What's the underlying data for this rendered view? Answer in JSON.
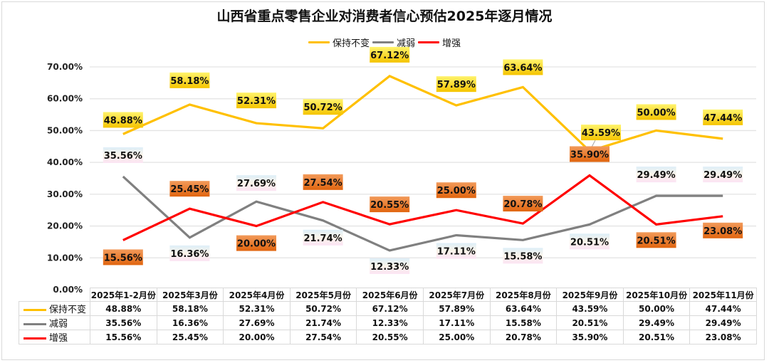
{
  "chart_data": {
    "type": "line",
    "title": "山西省重点零售企业对消费者信心预估2025年逐月情况",
    "xlabel": "",
    "ylabel": "",
    "ylim": [
      0,
      70
    ],
    "yticks": [
      "0.00%",
      "10.00%",
      "20.00%",
      "30.00%",
      "40.00%",
      "50.00%",
      "60.00%",
      "70.00%"
    ],
    "ytick_values": [
      0,
      10,
      20,
      30,
      40,
      50,
      60,
      70
    ],
    "grid": true,
    "legend_position": "top-center",
    "categories": [
      "2025年1-2月份",
      "2025年3月份",
      "2025年4月份",
      "2025年5月份",
      "2025年6月份",
      "2025年7月份",
      "2025年8月份",
      "2025年9月份",
      "2025年10月份",
      "2025年11月份"
    ],
    "series": [
      {
        "name": "保持不变",
        "color": "#FFC000",
        "label_style": "yellow",
        "values": [
          48.88,
          58.18,
          52.31,
          50.72,
          67.12,
          57.89,
          63.64,
          43.59,
          50.0,
          47.44
        ],
        "labels": [
          "48.88%",
          "58.18%",
          "52.31%",
          "50.72%",
          "67.12%",
          "57.89%",
          "63.64%",
          "43.59%",
          "50.00%",
          "47.44%"
        ]
      },
      {
        "name": "减弱",
        "color": "#808080",
        "label_style": "pastel",
        "values": [
          35.56,
          16.36,
          27.69,
          21.74,
          12.33,
          17.11,
          15.58,
          20.51,
          29.49,
          29.49
        ],
        "labels": [
          "35.56%",
          "16.36%",
          "27.69%",
          "21.74%",
          "12.33%",
          "17.11%",
          "15.58%",
          "20.51%",
          "29.49%",
          "29.49%"
        ]
      },
      {
        "name": "增强",
        "color": "#FF0000",
        "label_style": "orange",
        "values": [
          15.56,
          25.45,
          20.0,
          27.54,
          20.55,
          25.0,
          20.78,
          35.9,
          20.51,
          23.08
        ],
        "labels": [
          "15.56%",
          "25.45%",
          "20.00%",
          "27.54%",
          "20.55%",
          "25.00%",
          "20.78%",
          "35.90%",
          "20.51%",
          "23.08%"
        ]
      }
    ]
  }
}
